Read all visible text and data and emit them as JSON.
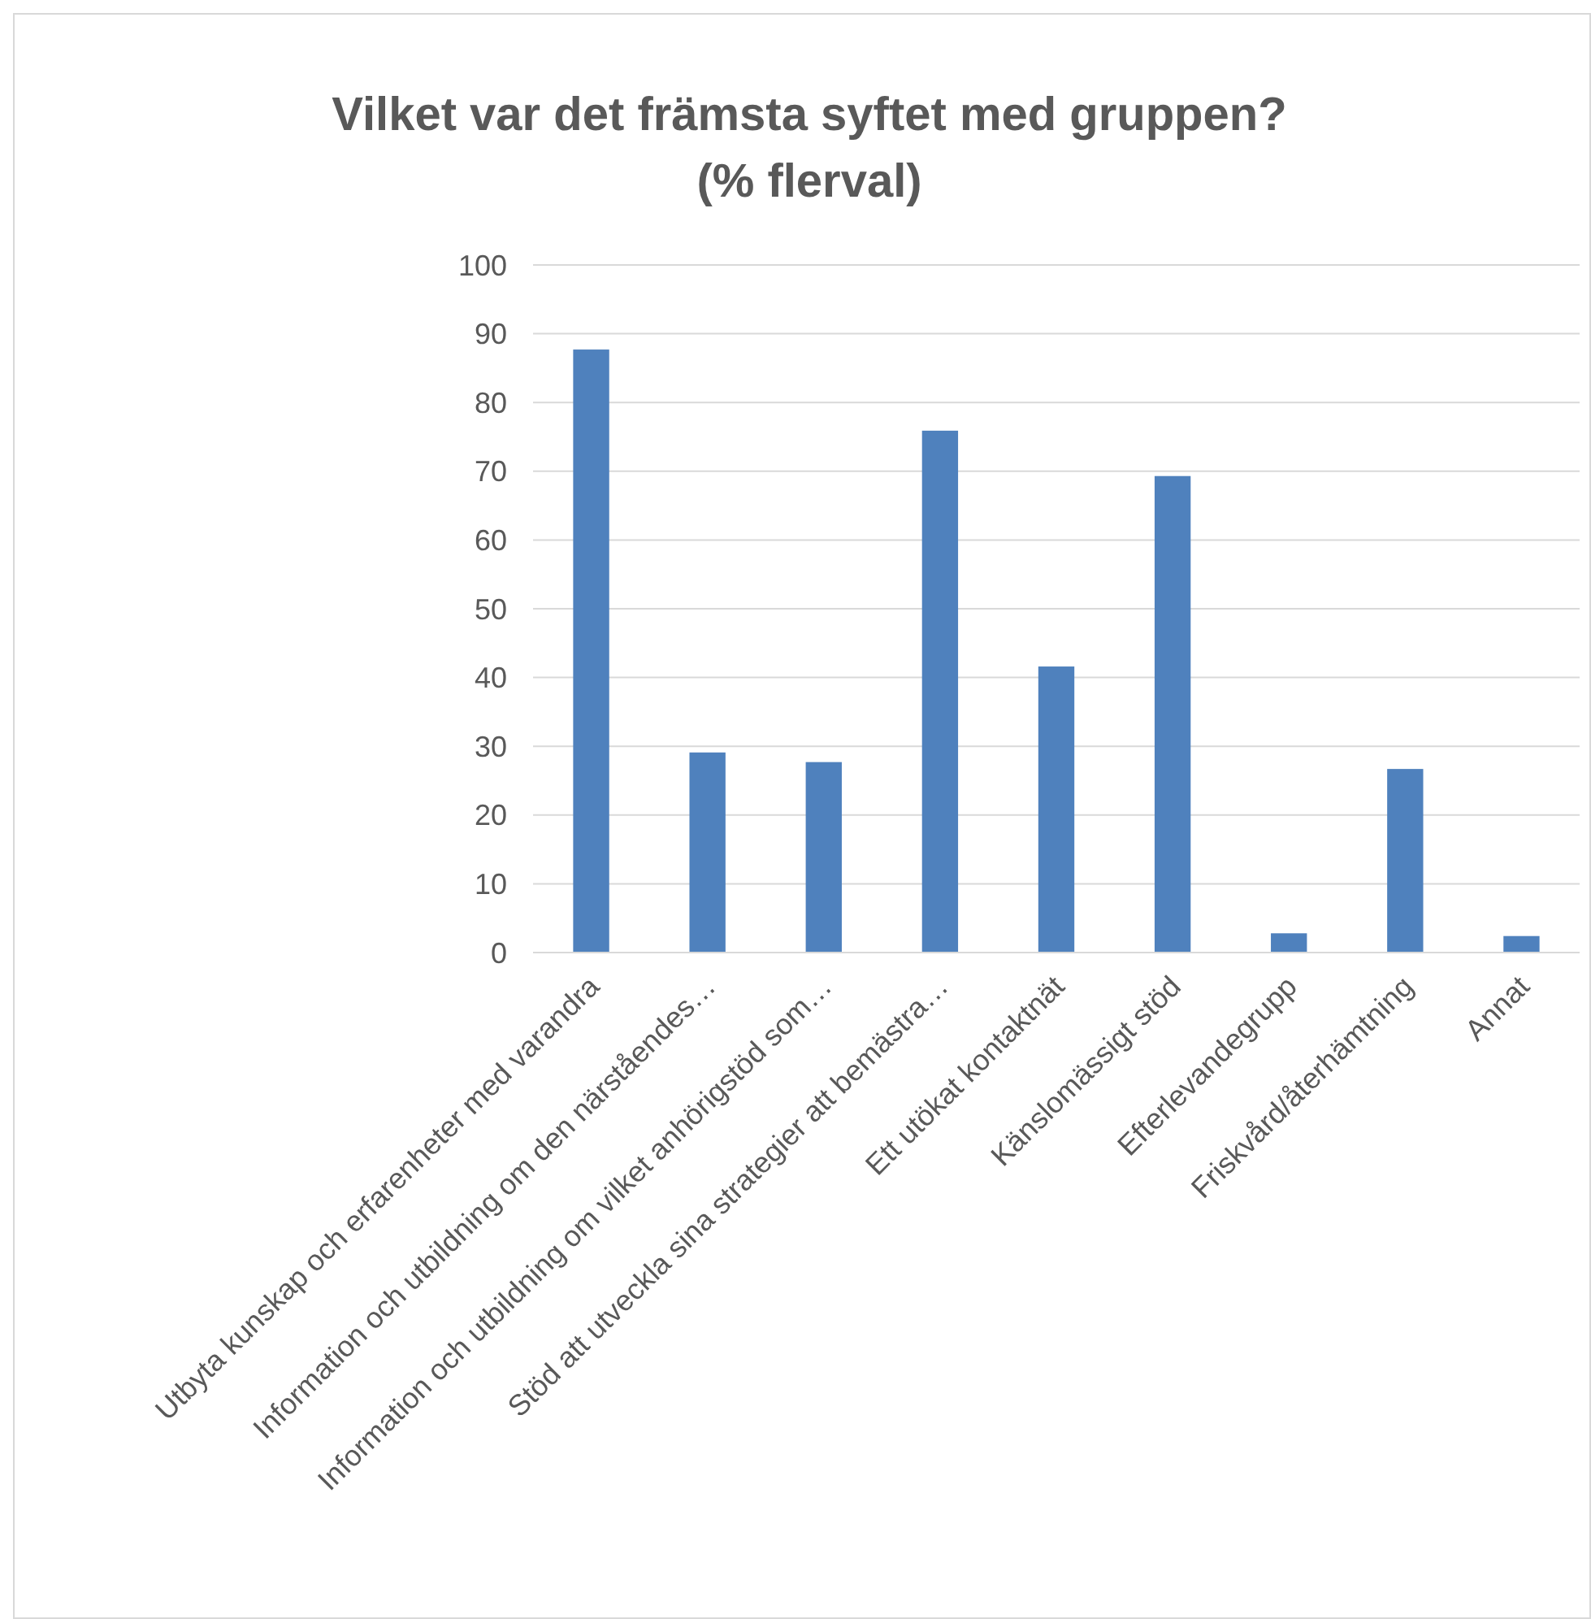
{
  "chart_data": {
    "type": "bar",
    "title": "Vilket var det främsta syftet med gruppen?",
    "subtitle": "(% flerval)",
    "categories": [
      "Utbyta kunskap och erfarenheter med varandra",
      "Information och utbildning om den närståendes…",
      "Information och utbildning om vilket anhörigstöd som…",
      "Stöd att utveckla sina strategier att bemästra…",
      "Ett utökat kontaktnät",
      "Känslomässigt stöd",
      "Efterlevandegrupp",
      "Friskvård/återhämtning",
      "Annat"
    ],
    "values": [
      87.7,
      29.1,
      27.7,
      75.9,
      41.6,
      69.3,
      2.8,
      26.7,
      2.4
    ],
    "color": "#4f81bd",
    "ylim": [
      0,
      100
    ],
    "yticks": [
      0,
      10,
      20,
      30,
      40,
      50,
      60,
      70,
      80,
      90,
      100
    ],
    "grid": "y"
  }
}
